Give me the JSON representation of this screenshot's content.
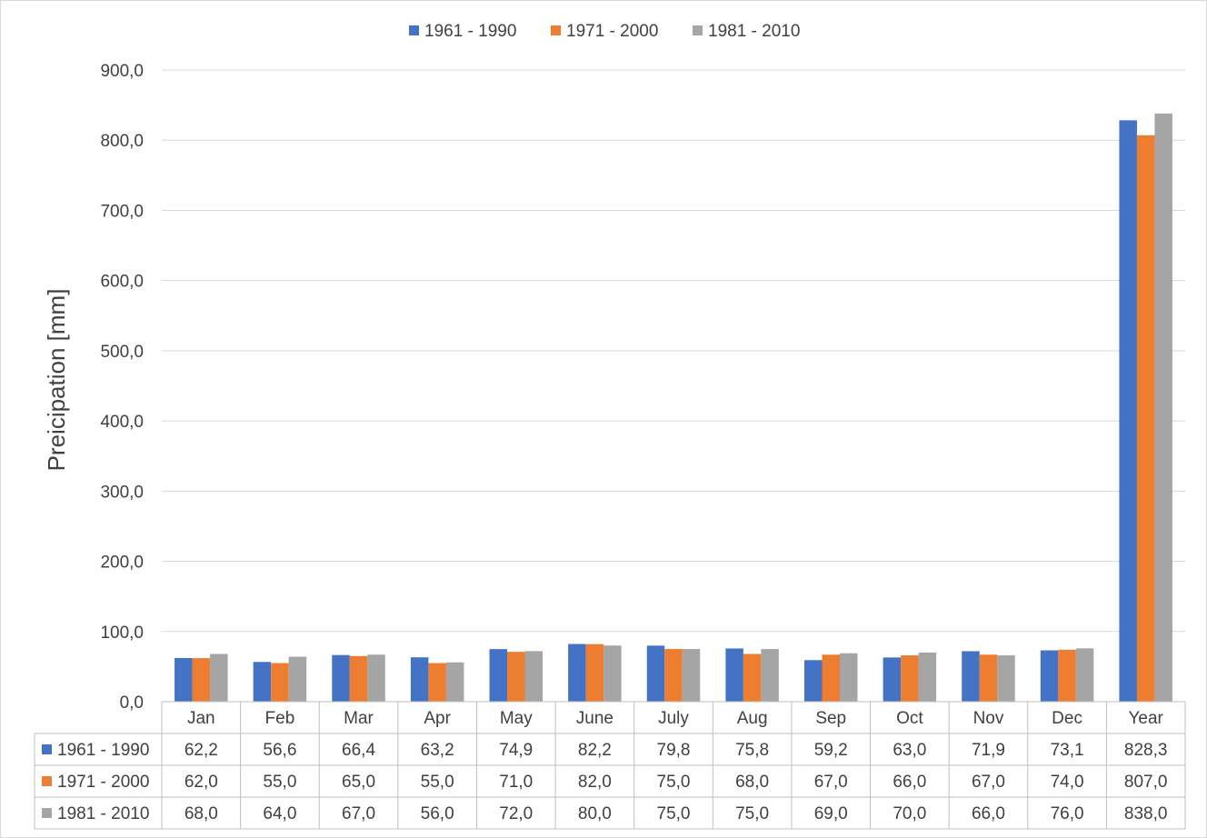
{
  "chart_data": {
    "type": "bar",
    "ylabel": "Preicipation [mm]",
    "ylim": [
      0,
      900
    ],
    "yticks": [
      "0,0",
      "100,0",
      "200,0",
      "300,0",
      "400,0",
      "500,0",
      "600,0",
      "700,0",
      "800,0",
      "900,0"
    ],
    "grid": true,
    "legend_position": "top",
    "categories": [
      "Jan",
      "Feb",
      "Mar",
      "Apr",
      "May",
      "June",
      "July",
      "Aug",
      "Sep",
      "Oct",
      "Nov",
      "Dec",
      "Year"
    ],
    "series": [
      {
        "name": "1961 - 1990",
        "color": "#4472c4",
        "values": [
          62.2,
          56.6,
          66.4,
          63.2,
          74.9,
          82.2,
          79.8,
          75.8,
          59.2,
          63.0,
          71.9,
          73.1,
          828.3
        ],
        "labels": [
          "62,2",
          "56,6",
          "66,4",
          "63,2",
          "74,9",
          "82,2",
          "79,8",
          "75,8",
          "59,2",
          "63,0",
          "71,9",
          "73,1",
          "828,3"
        ]
      },
      {
        "name": "1971 - 2000",
        "color": "#ed7d31",
        "values": [
          62.0,
          55.0,
          65.0,
          55.0,
          71.0,
          82.0,
          75.0,
          68.0,
          67.0,
          66.0,
          67.0,
          74.0,
          807.0
        ],
        "labels": [
          "62,0",
          "55,0",
          "65,0",
          "55,0",
          "71,0",
          "82,0",
          "75,0",
          "68,0",
          "67,0",
          "66,0",
          "67,0",
          "74,0",
          "807,0"
        ]
      },
      {
        "name": "1981 - 2010",
        "color": "#a5a5a5",
        "values": [
          68.0,
          64.0,
          67.0,
          56.0,
          72.0,
          80.0,
          75.0,
          75.0,
          69.0,
          70.0,
          66.0,
          76.0,
          838.0
        ],
        "labels": [
          "68,0",
          "64,0",
          "67,0",
          "56,0",
          "72,0",
          "80,0",
          "75,0",
          "75,0",
          "69,0",
          "70,0",
          "66,0",
          "76,0",
          "838,0"
        ]
      }
    ],
    "data_table": true
  }
}
